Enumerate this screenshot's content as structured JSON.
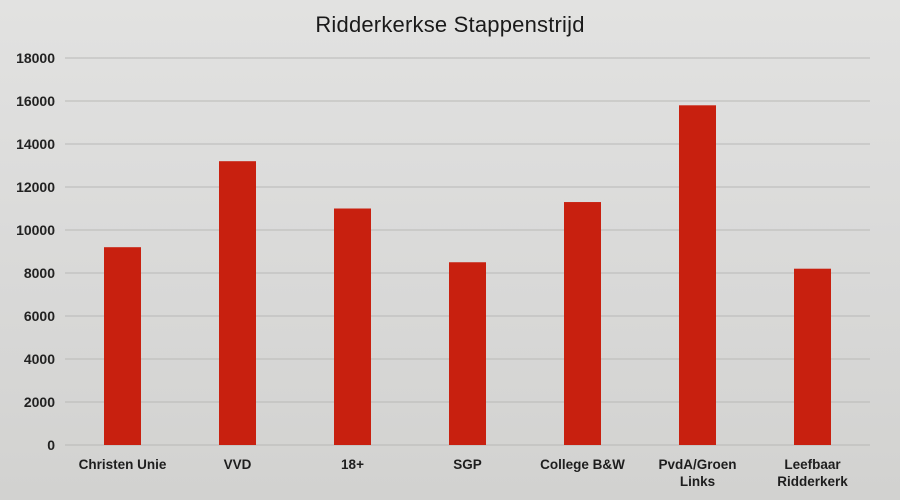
{
  "chart_data": {
    "type": "bar",
    "title": "Ridderkerkse Stappenstrijd",
    "xlabel": "",
    "ylabel": "",
    "ylim": [
      0,
      18000
    ],
    "yticks": [
      "0",
      "2000",
      "4000",
      "6000",
      "8000",
      "10000",
      "12000",
      "14000",
      "16000",
      "18000"
    ],
    "grid": true,
    "categories": [
      [
        "Christen Unie"
      ],
      [
        "VVD"
      ],
      [
        "18+"
      ],
      [
        "SGP"
      ],
      [
        "College B&W"
      ],
      [
        "PvdA/Groen",
        "Links"
      ],
      [
        "Leefbaar",
        "Ridderkerk"
      ]
    ],
    "values": [
      9200,
      13200,
      11000,
      8500,
      11300,
      15800,
      8200
    ],
    "bar_color": "#c8200f"
  }
}
